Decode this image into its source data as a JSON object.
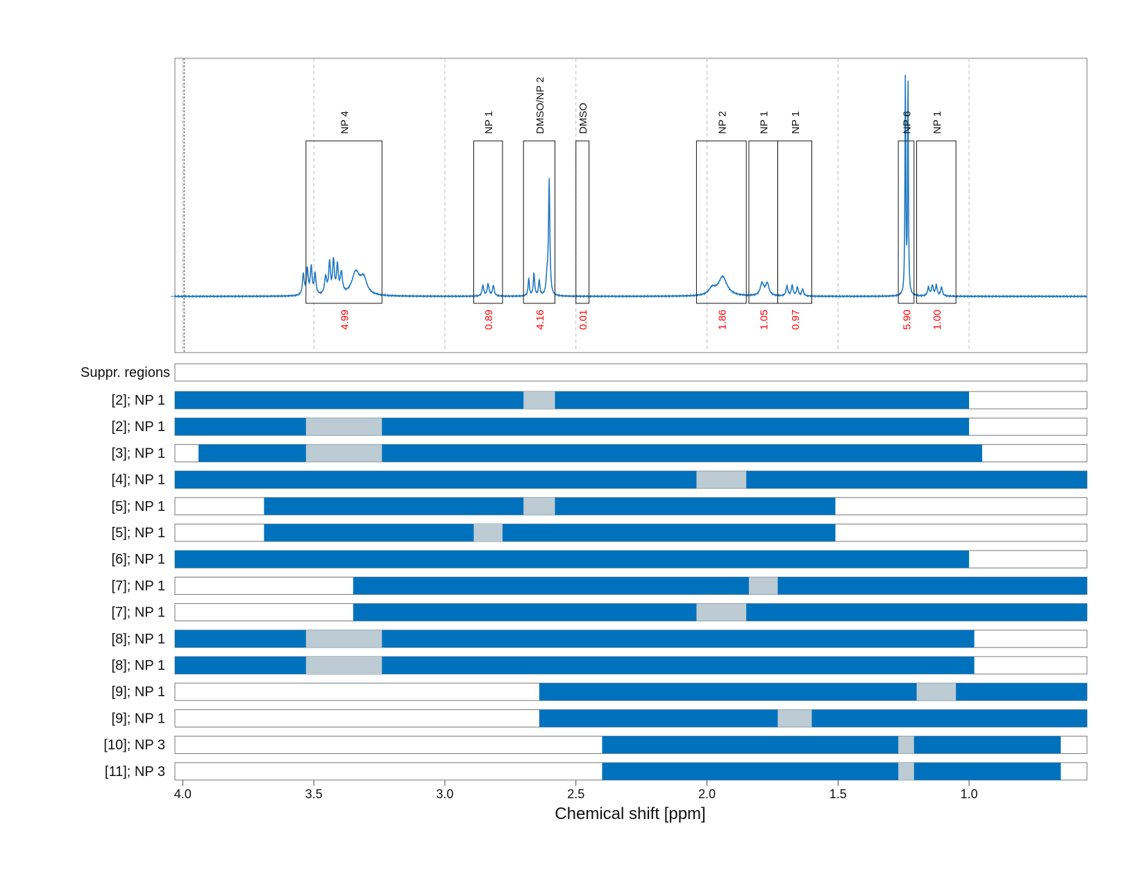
{
  "chart_data": {
    "type": "nmr-spectrum-with-integration-bars",
    "xlabel": "Chemical shift [ppm]",
    "xlim": [
      4.03,
      0.55
    ],
    "xticks": [
      4.0,
      3.5,
      3.0,
      2.5,
      2.0,
      1.5,
      1.0
    ],
    "xtick_labels": [
      "4.0",
      "3.5",
      "3.0",
      "2.5",
      "2.0",
      "1.5",
      "1.0"
    ],
    "colors": {
      "spectrum": "#1f77c0",
      "bar_fill": "#0072bd",
      "bar_gap": "#bccbd4",
      "integral_label": "#ff0000"
    },
    "peak_regions": [
      {
        "label": "NP 4",
        "from": 3.53,
        "to": 3.24,
        "integral": "4.99"
      },
      {
        "label": "NP 1",
        "from": 2.89,
        "to": 2.78,
        "integral": "0.89"
      },
      {
        "label": "DMSO/NP 2",
        "from": 2.7,
        "to": 2.58,
        "integral": "4.16"
      },
      {
        "label": "DMSO",
        "from": 2.5,
        "to": 2.45,
        "integral": "0.01"
      },
      {
        "label": "NP 2",
        "from": 2.04,
        "to": 1.85,
        "integral": "1.86"
      },
      {
        "label": "NP 1",
        "from": 1.84,
        "to": 1.73,
        "integral": "1.05"
      },
      {
        "label": "NP 1",
        "from": 1.73,
        "to": 1.6,
        "integral": "0.97"
      },
      {
        "label": "NP 6",
        "from": 1.27,
        "to": 1.21,
        "integral": "5.90"
      },
      {
        "label": "NP 1",
        "from": 1.2,
        "to": 1.05,
        "integral": "1.00"
      }
    ],
    "peaks": [
      {
        "center": 3.54,
        "height": 0.06,
        "width": 0.004
      },
      {
        "center": 3.525,
        "height": 0.075,
        "width": 0.004
      },
      {
        "center": 3.51,
        "height": 0.08,
        "width": 0.004
      },
      {
        "center": 3.495,
        "height": 0.06,
        "width": 0.004
      },
      {
        "center": 3.455,
        "height": 0.05,
        "width": 0.005
      },
      {
        "center": 3.44,
        "height": 0.09,
        "width": 0.004
      },
      {
        "center": 3.425,
        "height": 0.095,
        "width": 0.004
      },
      {
        "center": 3.41,
        "height": 0.08,
        "width": 0.004
      },
      {
        "center": 3.395,
        "height": 0.06,
        "width": 0.005
      },
      {
        "center": 3.34,
        "height": 0.065,
        "width": 0.018
      },
      {
        "center": 3.31,
        "height": 0.045,
        "width": 0.015
      },
      {
        "center": 2.855,
        "height": 0.03,
        "width": 0.004
      },
      {
        "center": 2.835,
        "height": 0.035,
        "width": 0.004
      },
      {
        "center": 2.815,
        "height": 0.03,
        "width": 0.004
      },
      {
        "center": 2.68,
        "height": 0.05,
        "width": 0.003
      },
      {
        "center": 2.66,
        "height": 0.065,
        "width": 0.003
      },
      {
        "center": 2.64,
        "height": 0.045,
        "width": 0.003
      },
      {
        "center": 2.602,
        "height": 0.33,
        "width": 0.003
      },
      {
        "center": 2.61,
        "height": 0.05,
        "width": 0.004
      },
      {
        "center": 1.94,
        "height": 0.055,
        "width": 0.02
      },
      {
        "center": 1.98,
        "height": 0.02,
        "width": 0.015
      },
      {
        "center": 1.79,
        "height": 0.035,
        "width": 0.008
      },
      {
        "center": 1.77,
        "height": 0.035,
        "width": 0.008
      },
      {
        "center": 1.695,
        "height": 0.028,
        "width": 0.004
      },
      {
        "center": 1.675,
        "height": 0.03,
        "width": 0.004
      },
      {
        "center": 1.655,
        "height": 0.025,
        "width": 0.004
      },
      {
        "center": 1.635,
        "height": 0.02,
        "width": 0.004
      },
      {
        "center": 1.243,
        "height": 0.64,
        "width": 0.0018
      },
      {
        "center": 1.233,
        "height": 0.63,
        "width": 0.0018
      },
      {
        "center": 1.155,
        "height": 0.025,
        "width": 0.004
      },
      {
        "center": 1.14,
        "height": 0.03,
        "width": 0.004
      },
      {
        "center": 1.125,
        "height": 0.03,
        "width": 0.004
      },
      {
        "center": 1.105,
        "height": 0.025,
        "width": 0.004
      }
    ],
    "suppressed_regions_label": "Suppr. regions",
    "rows": [
      {
        "label": "[2]; NP 1",
        "from": 4.03,
        "to": 1.0,
        "gap": [
          2.7,
          2.58
        ]
      },
      {
        "label": "[2]; NP 1",
        "from": 4.03,
        "to": 1.0,
        "gap": [
          3.53,
          3.24
        ]
      },
      {
        "label": "[3]; NP 1",
        "from": 3.94,
        "to": 0.95,
        "gap": [
          3.53,
          3.24
        ]
      },
      {
        "label": "[4]; NP 1",
        "from": 4.03,
        "to": 0.55,
        "gap": [
          2.04,
          1.85
        ]
      },
      {
        "label": "[5]; NP 1",
        "from": 3.69,
        "to": 1.51,
        "gap": [
          2.7,
          2.58
        ]
      },
      {
        "label": "[5]; NP 1",
        "from": 3.69,
        "to": 1.51,
        "gap": [
          2.89,
          2.78
        ]
      },
      {
        "label": "[6]; NP 1",
        "from": 4.03,
        "to": 1.0,
        "gap": null
      },
      {
        "label": "[7]; NP 1",
        "from": 3.35,
        "to": 0.55,
        "gap": [
          1.84,
          1.73
        ]
      },
      {
        "label": "[7]; NP 1",
        "from": 3.35,
        "to": 0.55,
        "gap": [
          2.04,
          1.85
        ]
      },
      {
        "label": "[8]; NP 1",
        "from": 4.03,
        "to": 0.98,
        "gap": [
          3.53,
          3.24
        ]
      },
      {
        "label": "[8]; NP 1",
        "from": 4.03,
        "to": 0.98,
        "gap": [
          3.53,
          3.24
        ]
      },
      {
        "label": "[9]; NP 1",
        "from": 2.64,
        "to": 0.55,
        "gap": [
          1.2,
          1.05
        ]
      },
      {
        "label": "[9]; NP 1",
        "from": 2.64,
        "to": 0.55,
        "gap": [
          1.73,
          1.6
        ]
      },
      {
        "label": "[10]; NP 3",
        "from": 2.4,
        "to": 0.65,
        "gap": [
          1.27,
          1.21
        ]
      },
      {
        "label": "[11]; NP 3",
        "from": 2.4,
        "to": 0.65,
        "gap": [
          1.27,
          1.21
        ]
      }
    ]
  }
}
